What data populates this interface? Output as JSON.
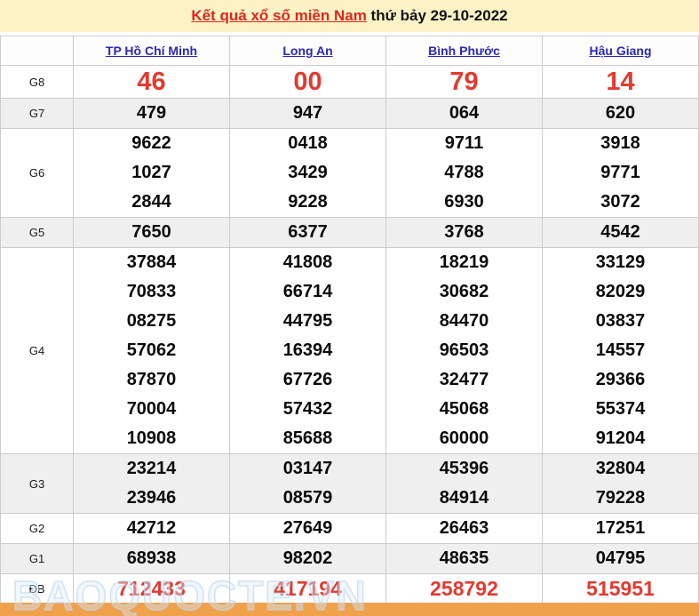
{
  "banner": {
    "title_link": "Kết quả xổ số miền Nam",
    "title_rest": " thứ bảy 29-10-2022"
  },
  "table": {
    "columns": [
      "TP Hồ Chí Minh",
      "Long An",
      "Bình Phước",
      "Hậu Giang"
    ],
    "rows": [
      {
        "label": "G8",
        "style": "red-large",
        "shade": false,
        "values": [
          [
            "46"
          ],
          [
            "00"
          ],
          [
            "79"
          ],
          [
            "14"
          ]
        ]
      },
      {
        "label": "G7",
        "style": "num",
        "shade": true,
        "values": [
          [
            "479"
          ],
          [
            "947"
          ],
          [
            "064"
          ],
          [
            "620"
          ]
        ]
      },
      {
        "label": "G6",
        "style": "num",
        "shade": false,
        "values": [
          [
            "9622",
            "1027",
            "2844"
          ],
          [
            "0418",
            "3429",
            "9228"
          ],
          [
            "9711",
            "4788",
            "6930"
          ],
          [
            "3918",
            "9771",
            "3072"
          ]
        ]
      },
      {
        "label": "G5",
        "style": "num",
        "shade": true,
        "values": [
          [
            "7650"
          ],
          [
            "6377"
          ],
          [
            "3768"
          ],
          [
            "4542"
          ]
        ]
      },
      {
        "label": "G4",
        "style": "num",
        "shade": false,
        "values": [
          [
            "37884",
            "70833",
            "08275",
            "57062",
            "87870",
            "70004",
            "10908"
          ],
          [
            "41808",
            "66714",
            "44795",
            "16394",
            "67726",
            "57432",
            "85688"
          ],
          [
            "18219",
            "30682",
            "84470",
            "96503",
            "32477",
            "45068",
            "60000"
          ],
          [
            "33129",
            "82029",
            "03837",
            "14557",
            "29366",
            "55374",
            "91204"
          ]
        ]
      },
      {
        "label": "G3",
        "style": "num",
        "shade": true,
        "values": [
          [
            "23214",
            "23946"
          ],
          [
            "03147",
            "08579"
          ],
          [
            "45396",
            "84914"
          ],
          [
            "32804",
            "79228"
          ]
        ]
      },
      {
        "label": "G2",
        "style": "num",
        "shade": false,
        "values": [
          [
            "42712"
          ],
          [
            "27649"
          ],
          [
            "26463"
          ],
          [
            "17251"
          ]
        ]
      },
      {
        "label": "G1",
        "style": "num",
        "shade": true,
        "values": [
          [
            "68938"
          ],
          [
            "98202"
          ],
          [
            "48635"
          ],
          [
            "04795"
          ]
        ]
      },
      {
        "label": "ĐB",
        "style": "red-db",
        "shade": false,
        "values": [
          [
            "712433"
          ],
          [
            "417194"
          ],
          [
            "258792"
          ],
          [
            "515951"
          ]
        ]
      }
    ]
  },
  "watermark": "BAOQUOCTE.VN",
  "colors": {
    "banner_bg": "#fbf3c6",
    "title_red": "#e2251c",
    "link_blue": "#2b28b8",
    "number_red": "#e23a30",
    "shade_gray": "#efefef",
    "border_gray": "#cccccc",
    "orange_bar": "#f0a14c"
  }
}
